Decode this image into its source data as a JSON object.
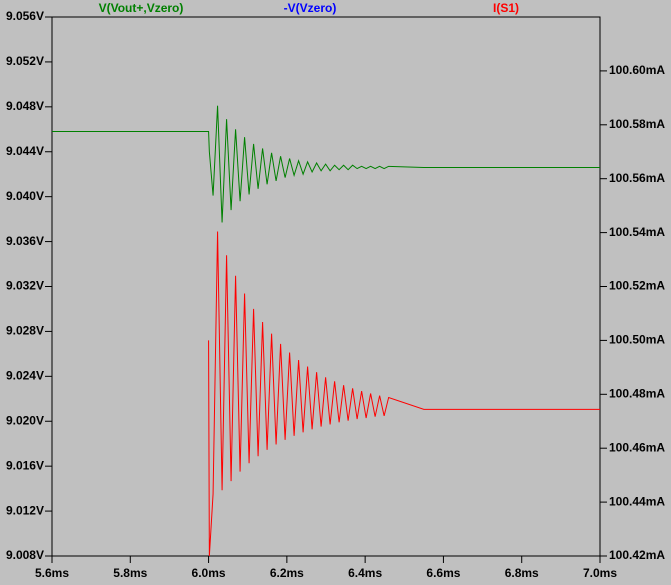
{
  "chart_data": {
    "type": "line",
    "x": [
      5.6,
      6.0,
      6.002,
      6.0115,
      6.023,
      6.0345,
      6.046,
      6.0575,
      6.069,
      6.0805,
      6.092,
      6.1035,
      6.115,
      6.1265,
      6.138,
      6.1495,
      6.161,
      6.1725,
      6.184,
      6.1955,
      6.207,
      6.2185,
      6.23,
      6.2415,
      6.253,
      6.2645,
      6.276,
      6.2875,
      6.299,
      6.3105,
      6.322,
      6.3335,
      6.345,
      6.3565,
      6.368,
      6.3795,
      6.391,
      6.4025,
      6.414,
      6.4255,
      6.437,
      6.4485,
      6.46,
      6.55,
      7.0
    ],
    "series": [
      {
        "name": "V(Vout+,Vzero)",
        "color": "#008000",
        "axis": "y",
        "values": [
          9.0458,
          9.0458,
          9.044,
          9.0401,
          9.0481,
          9.0377,
          9.0469,
          9.0388,
          9.046,
          9.0396,
          9.0453,
          9.0402,
          9.0447,
          9.0407,
          9.0443,
          9.0411,
          9.0439,
          9.0414,
          9.0436,
          9.0417,
          9.0434,
          9.0419,
          9.0432,
          9.042,
          9.0431,
          9.0422,
          9.043,
          9.0423,
          9.0429,
          9.0423,
          9.0428,
          9.0424,
          9.0428,
          9.0424,
          9.0428,
          9.0425,
          9.0427,
          9.0425,
          9.0427,
          9.0425,
          9.0427,
          9.0425,
          9.0427,
          9.0426,
          9.0426
        ]
      },
      {
        "name": "I(S1)",
        "color": "#ff0000",
        "axis": "y2",
        "values": [
          null,
          100.5,
          100.42,
          100.443,
          100.5404,
          100.4444,
          100.5316,
          100.4478,
          100.524,
          100.4513,
          100.5174,
          100.4544,
          100.5117,
          100.457,
          100.5068,
          100.4594,
          100.5025,
          100.4614,
          100.4987,
          100.4631,
          100.4955,
          100.4646,
          100.4927,
          100.4659,
          100.4903,
          100.467,
          100.4882,
          100.468,
          100.4863,
          100.4688,
          100.4848,
          100.4696,
          100.4834,
          100.4702,
          100.4822,
          100.4708,
          100.4812,
          100.4712,
          100.4803,
          100.4717,
          100.4795,
          100.472,
          100.4788,
          100.4744,
          100.4744
        ]
      }
    ],
    "annotations": [
      {
        "text": "-V(Vzero)",
        "color": "#0000ff"
      }
    ],
    "xlim": [
      5.6,
      7.0
    ],
    "xticks": [
      {
        "value": 5.6,
        "label": "5.6ms"
      },
      {
        "value": 5.8,
        "label": "5.8ms"
      },
      {
        "value": 6.0,
        "label": "6.0ms"
      },
      {
        "value": 6.2,
        "label": "6.2ms"
      },
      {
        "value": 6.4,
        "label": "6.4ms"
      },
      {
        "value": 6.6,
        "label": "6.6ms"
      },
      {
        "value": 6.8,
        "label": "6.8ms"
      },
      {
        "value": 7.0,
        "label": "7.0ms"
      }
    ],
    "ylim": [
      9.008,
      9.056
    ],
    "yticks": [
      {
        "value": 9.008,
        "label": "9.008V"
      },
      {
        "value": 9.012,
        "label": "9.012V"
      },
      {
        "value": 9.016,
        "label": "9.016V"
      },
      {
        "value": 9.02,
        "label": "9.020V"
      },
      {
        "value": 9.024,
        "label": "9.024V"
      },
      {
        "value": 9.028,
        "label": "9.028V"
      },
      {
        "value": 9.032,
        "label": "9.032V"
      },
      {
        "value": 9.036,
        "label": "9.036V"
      },
      {
        "value": 9.04,
        "label": "9.040V"
      },
      {
        "value": 9.044,
        "label": "9.044V"
      },
      {
        "value": 9.048,
        "label": "9.048V"
      },
      {
        "value": 9.052,
        "label": "9.052V"
      },
      {
        "value": 9.056,
        "label": "9.056V"
      }
    ],
    "y2lim": [
      100.42,
      100.62
    ],
    "y2ticks": [
      {
        "value": 100.42,
        "label": "100.42mA"
      },
      {
        "value": 100.44,
        "label": "100.44mA"
      },
      {
        "value": 100.46,
        "label": "100.46mA"
      },
      {
        "value": 100.48,
        "label": "100.48mA"
      },
      {
        "value": 100.5,
        "label": "100.50mA"
      },
      {
        "value": 100.52,
        "label": "100.52mA"
      },
      {
        "value": 100.54,
        "label": "100.54mA"
      },
      {
        "value": 100.56,
        "label": "100.56mA"
      },
      {
        "value": 100.58,
        "label": "100.58mA"
      },
      {
        "value": 100.6,
        "label": "100.60mA"
      }
    ]
  }
}
